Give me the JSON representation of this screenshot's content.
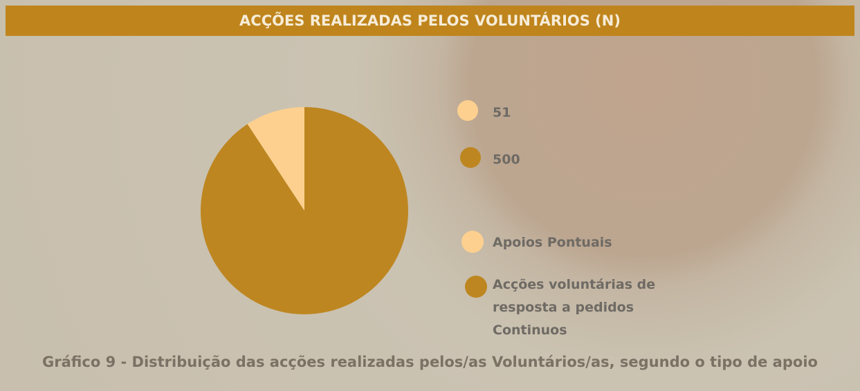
{
  "chart_data": {
    "type": "pie",
    "title": "ACÇÕES REALIZADAS PELOS VOLUNTÁRIOS (N)",
    "categories": [
      "Apoios Pontuais",
      "Acções voluntárias de resposta a pedidos Continuos"
    ],
    "values": [
      51,
      500
    ],
    "colors": [
      "#fdd08f",
      "#bd8620"
    ],
    "caption": "Gráfico 9 - Distribuição das acções realizadas pelos/as Voluntários/as, segundo o tipo de apoio"
  }
}
